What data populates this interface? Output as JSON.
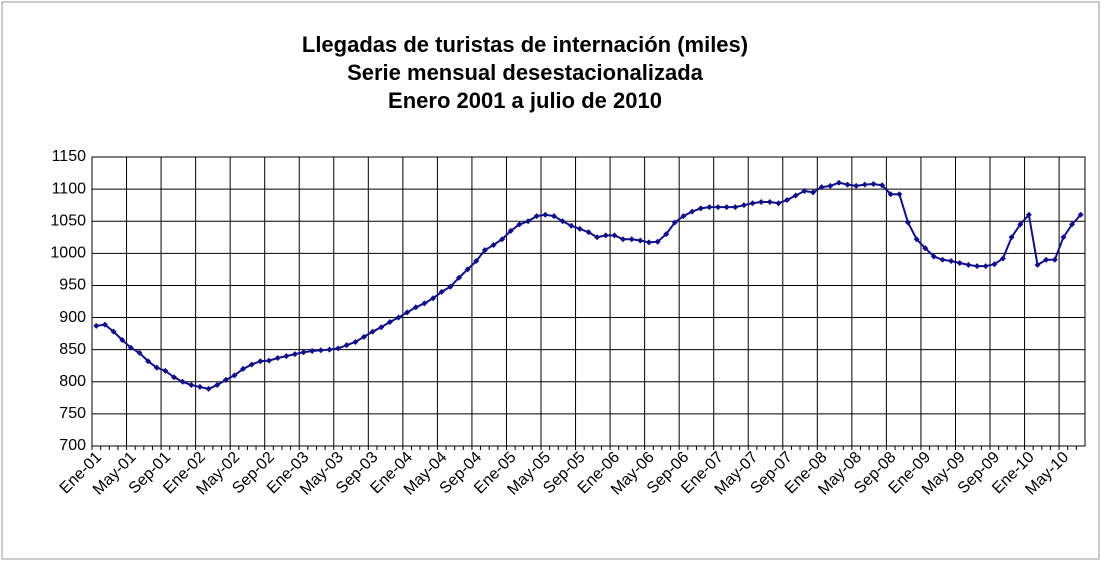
{
  "chart_data": {
    "type": "line",
    "title": "Llegadas de turistas de internación (miles)",
    "subtitle": "Serie mensual desestacionalizada",
    "subtitle2": "Enero 2001 a julio de 2010",
    "categories": [
      "Ene-01",
      null,
      null,
      null,
      "May-01",
      null,
      null,
      null,
      "Sep-01",
      null,
      null,
      null,
      "Ene-02",
      null,
      null,
      null,
      "May-02",
      null,
      null,
      null,
      "Sep-02",
      null,
      null,
      null,
      "Ene-03",
      null,
      null,
      null,
      "May-03",
      null,
      null,
      null,
      "Sep-03",
      null,
      null,
      null,
      "Ene-04",
      null,
      null,
      null,
      "May-04",
      null,
      null,
      null,
      "Sep-04",
      null,
      null,
      null,
      "Ene-05",
      null,
      null,
      null,
      "May-05",
      null,
      null,
      null,
      "Sep-05",
      null,
      null,
      null,
      "Ene-06",
      null,
      null,
      null,
      "May-06",
      null,
      null,
      null,
      "Sep-06",
      null,
      null,
      null,
      "Ene-07",
      null,
      null,
      null,
      "May-07",
      null,
      null,
      null,
      "Sep-07",
      null,
      null,
      null,
      "Ene-08",
      null,
      null,
      null,
      "May-08",
      null,
      null,
      null,
      "Sep-08",
      null,
      null,
      null,
      "Ene-09",
      null,
      null,
      null,
      "May-09",
      null,
      null,
      null,
      "Sep-09",
      null,
      null,
      null,
      "Ene-10",
      null,
      null,
      null,
      "May-10",
      null,
      null
    ],
    "series": [
      {
        "color": "#10108a",
        "values": [
          887,
          889,
          878,
          865,
          853,
          845,
          832,
          822,
          817,
          807,
          800,
          795,
          792,
          789,
          795,
          803,
          810,
          820,
          827,
          832,
          833,
          837,
          840,
          843,
          846,
          848,
          849,
          850,
          852,
          857,
          862,
          870,
          878,
          885,
          893,
          900,
          908,
          916,
          922,
          930,
          940,
          948,
          962,
          975,
          988,
          1005,
          1013,
          1022,
          1035,
          1045,
          1050,
          1058,
          1060,
          1058,
          1050,
          1043,
          1038,
          1033,
          1025,
          1028,
          1028,
          1022,
          1022,
          1020,
          1017,
          1018,
          1030,
          1048,
          1058,
          1065,
          1070,
          1072,
          1072,
          1072,
          1072,
          1075,
          1078,
          1080,
          1080,
          1078,
          1083,
          1090,
          1097,
          1095,
          1103,
          1105,
          1110,
          1107,
          1105,
          1107,
          1108,
          1106,
          1092,
          1092,
          1048,
          1022,
          1008,
          995,
          990,
          988,
          985,
          982,
          980,
          980,
          983,
          992,
          1025,
          1045,
          1060,
          982,
          990,
          990,
          1025,
          1045,
          1060
        ]
      }
    ],
    "ylim": [
      700,
      1150
    ],
    "yticks": [
      700,
      750,
      800,
      850,
      900,
      950,
      1000,
      1050,
      1100,
      1150
    ],
    "grid": true
  }
}
